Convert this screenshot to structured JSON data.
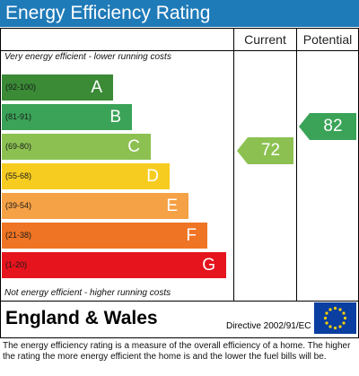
{
  "title": "Energy Efficiency Rating",
  "columns": {
    "current": "Current",
    "potential": "Potential"
  },
  "notes": {
    "top": "Very energy efficient - lower running costs",
    "bottom": "Not energy efficient - higher running costs"
  },
  "bands": [
    {
      "range": "(92-100)",
      "letter": "A",
      "color": "#3a8a36"
    },
    {
      "range": "(81-91)",
      "letter": "B",
      "color": "#3aa357"
    },
    {
      "range": "(69-80)",
      "letter": "C",
      "color": "#8cc152"
    },
    {
      "range": "(55-68)",
      "letter": "D",
      "color": "#f6cc20"
    },
    {
      "range": "(39-54)",
      "letter": "E",
      "color": "#f5a145"
    },
    {
      "range": "(21-38)",
      "letter": "F",
      "color": "#ef7424"
    },
    {
      "range": "(1-20)",
      "letter": "G",
      "color": "#e5141d"
    }
  ],
  "ratings": {
    "current": {
      "value": "72",
      "color": "#8cc152"
    },
    "potential": {
      "value": "82",
      "color": "#3aa357"
    }
  },
  "region": "England & Wales",
  "directive": "Directive 2002/91/EC",
  "flag_icon": "eu-flag-icon",
  "footer": "The energy efficiency rating is a measure of the overall efficiency of a home. The higher the rating the more energy efficient the home is and the lower the fuel bills will be."
}
